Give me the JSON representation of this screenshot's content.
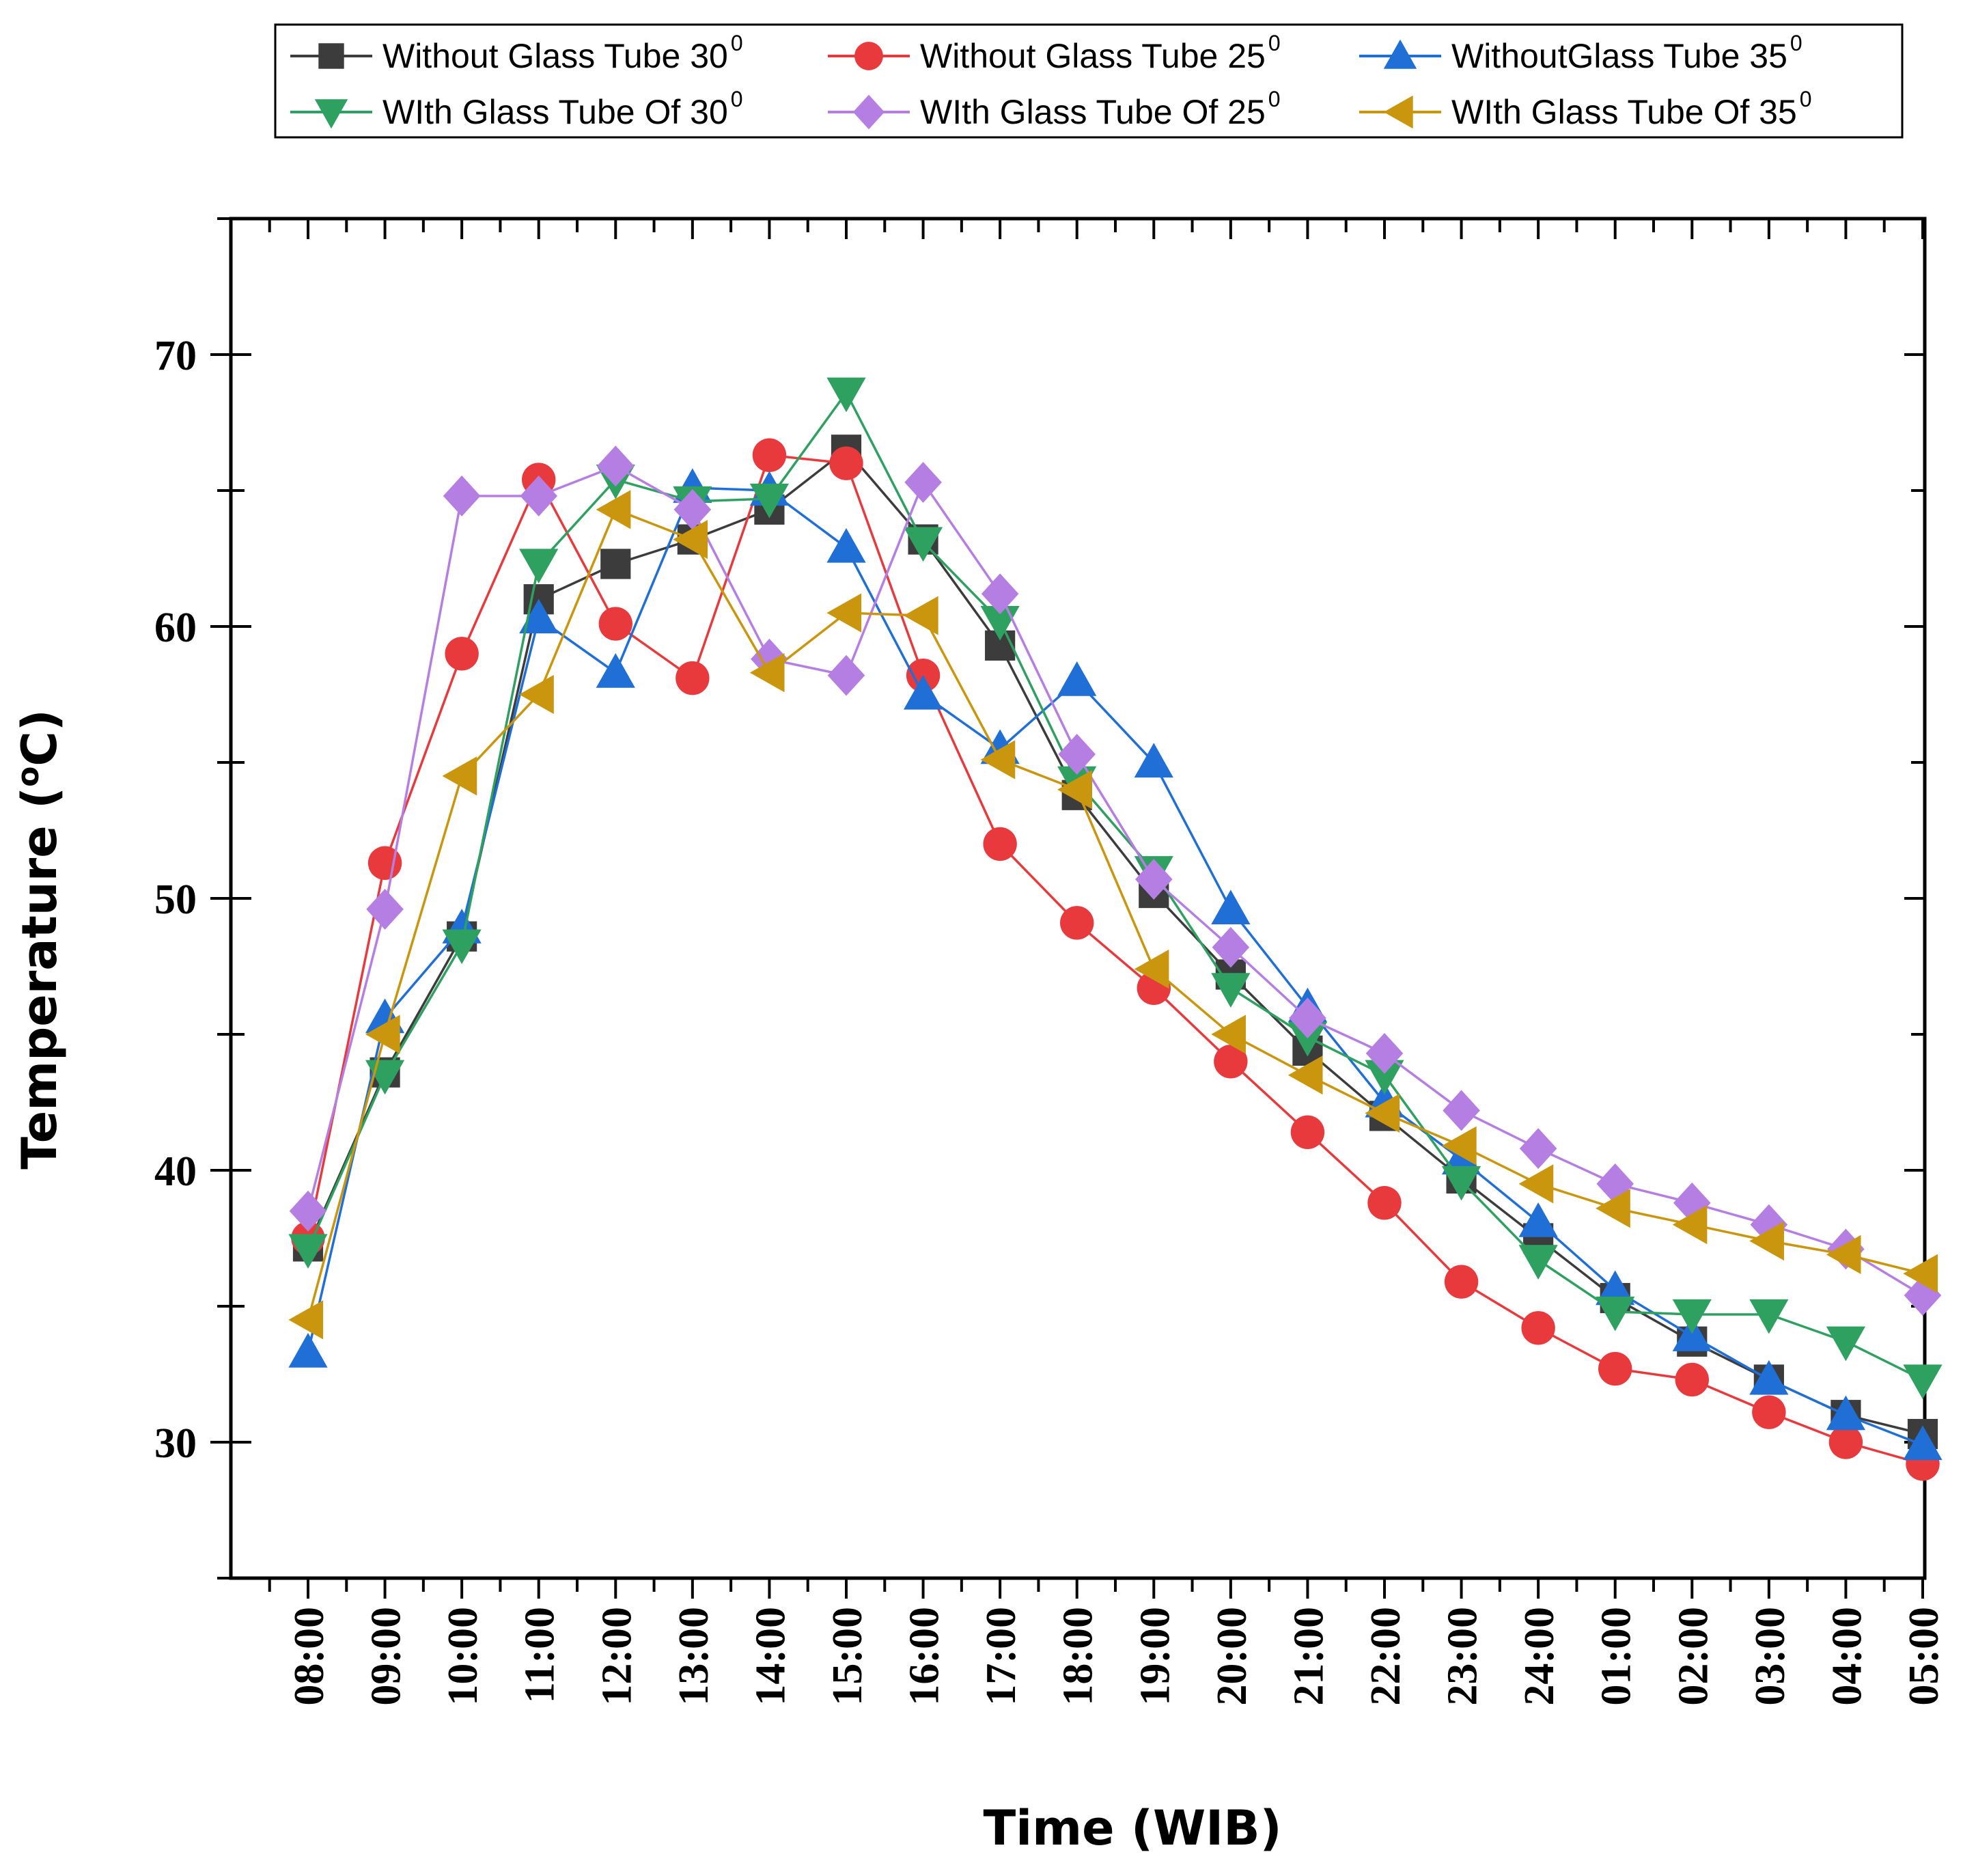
{
  "chart_data": {
    "type": "line",
    "title": "",
    "xlabel": "Time (WIB)",
    "ylabel_main": "Temperature (",
    "ylabel_sup": "o",
    "ylabel_tail": "C)",
    "ylim": [
      25,
      75
    ],
    "yticks": [
      30,
      40,
      50,
      60,
      70
    ],
    "grid": false,
    "legend_position": "top",
    "categories": [
      "08:00",
      "09:00",
      "10:00",
      "11:00",
      "12:00",
      "13:00",
      "14:00",
      "15:00",
      "16:00",
      "17:00",
      "18:00",
      "19:00",
      "20:00",
      "21:00",
      "22:00",
      "23:00",
      "24:00",
      "01:00",
      "02:00",
      "03:00",
      "04:00",
      "05:00"
    ],
    "series": [
      {
        "name": "Without Glass Tube 30",
        "sup": "0",
        "color": "#3c3c3c",
        "marker": "square",
        "values": [
          37.2,
          43.6,
          48.6,
          61.0,
          62.3,
          63.2,
          64.3,
          66.5,
          63.2,
          59.3,
          53.8,
          50.2,
          47.2,
          44.4,
          42.0,
          39.7,
          37.5,
          35.3,
          33.7,
          32.3,
          31.0,
          30.3
        ]
      },
      {
        "name": "Without Glass Tube 25",
        "sup": "0",
        "color": "#e8393c",
        "marker": "circle",
        "values": [
          37.5,
          51.3,
          59.0,
          65.4,
          60.1,
          58.1,
          66.3,
          66.0,
          58.2,
          52.0,
          49.1,
          46.7,
          44.0,
          41.4,
          38.8,
          35.9,
          34.2,
          32.7,
          32.3,
          31.1,
          30.0,
          29.2
        ]
      },
      {
        "name": "WithoutGlass Tube 35",
        "sup": "0",
        "color": "#1f6fd6",
        "marker": "triangle-up",
        "values": [
          33.3,
          45.6,
          48.9,
          60.3,
          58.3,
          65.1,
          65.0,
          62.9,
          57.5,
          55.5,
          58.0,
          55.0,
          49.6,
          46.0,
          42.5,
          40.4,
          38.1,
          35.6,
          33.9,
          32.3,
          31.0,
          29.9
        ]
      },
      {
        "name": "WIth Glass Tube Of 30",
        "sup": "0",
        "color": "#2ea060",
        "marker": "triangle-down",
        "values": [
          37.1,
          43.5,
          48.3,
          62.3,
          65.4,
          64.6,
          64.7,
          68.6,
          63.1,
          60.2,
          54.3,
          51.0,
          46.7,
          44.9,
          43.5,
          39.6,
          36.7,
          34.8,
          34.7,
          34.7,
          33.7,
          32.3
        ]
      },
      {
        "name": "WIth Glass Tube Of 25",
        "sup": "0",
        "color": "#b57ee3",
        "marker": "diamond",
        "values": [
          38.5,
          49.6,
          64.8,
          64.8,
          65.9,
          64.3,
          58.8,
          58.2,
          65.3,
          61.2,
          55.3,
          50.7,
          48.2,
          45.6,
          44.3,
          42.2,
          40.8,
          39.5,
          38.8,
          38.0,
          37.1,
          35.4
        ]
      },
      {
        "name": "WIth Glass Tube Of 35",
        "sup": "0",
        "color": "#c9960e",
        "marker": "triangle-left",
        "values": [
          34.5,
          45.0,
          54.5,
          57.5,
          64.3,
          63.2,
          58.3,
          60.5,
          60.4,
          55.1,
          54.0,
          47.4,
          45.0,
          43.5,
          42.1,
          40.9,
          39.5,
          38.6,
          38.0,
          37.4,
          36.9,
          36.2
        ]
      }
    ]
  }
}
